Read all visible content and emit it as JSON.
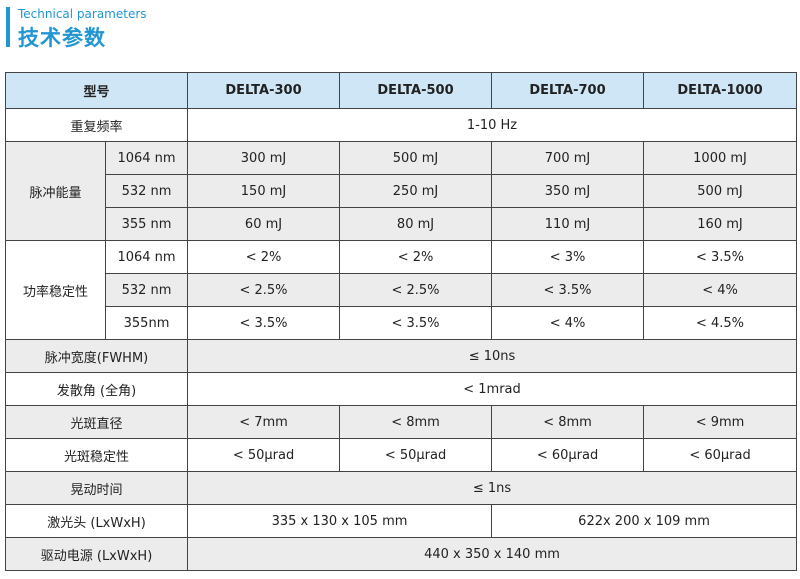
{
  "header": {
    "subtitle": "Technical parameters",
    "title": "技术参数"
  },
  "table": {
    "model_label": "型号",
    "models": [
      "DELTA-300",
      "DELTA-500",
      "DELTA-700",
      "DELTA-1000"
    ],
    "rep_rate": {
      "label": "重复频率",
      "value": "1-10 Hz"
    },
    "pulse_energy": {
      "label": "脉冲能量",
      "rows": [
        {
          "wavelength": "1064 nm",
          "values": [
            "300 mJ",
            "500 mJ",
            "700 mJ",
            "1000 mJ"
          ]
        },
        {
          "wavelength": "532 nm",
          "values": [
            "150 mJ",
            "250 mJ",
            "350 mJ",
            "500 mJ"
          ]
        },
        {
          "wavelength": "355 nm",
          "values": [
            "60 mJ",
            "80 mJ",
            "110 mJ",
            "160 mJ"
          ]
        }
      ]
    },
    "power_stability": {
      "label": "功率稳定性",
      "rows": [
        {
          "wavelength": "1064 nm",
          "values": [
            "< 2%",
            "< 2%",
            "< 3%",
            "< 3.5%"
          ]
        },
        {
          "wavelength": "532 nm",
          "values": [
            "< 2.5%",
            "< 2.5%",
            "< 3.5%",
            "< 4%"
          ]
        },
        {
          "wavelength": "355nm",
          "values": [
            "< 3.5%",
            "< 3.5%",
            "< 4%",
            "< 4.5%"
          ]
        }
      ]
    },
    "pulse_width": {
      "label": "脉冲宽度(FWHM)",
      "value": "≤ 10ns"
    },
    "divergence": {
      "label": "发散角 (全角)",
      "value": "< 1mrad"
    },
    "spot_diameter": {
      "label": "光斑直径",
      "values": [
        "< 7mm",
        "< 8mm",
        "< 8mm",
        "< 9mm"
      ]
    },
    "spot_stability": {
      "label": "光斑稳定性",
      "values": [
        "< 50μrad",
        "< 50μrad",
        "< 60μrad",
        "< 60μrad"
      ]
    },
    "jitter": {
      "label": "晃动时间",
      "value": "≤ 1ns"
    },
    "laser_head": {
      "label": "激光头 (LxWxH)",
      "values": [
        "335 x 130 x 105 mm",
        "622x 200 x 109 mm"
      ]
    },
    "power_supply": {
      "label": "驱动电源 (LxWxH)",
      "value": "440 x 350 x 140 mm"
    }
  }
}
